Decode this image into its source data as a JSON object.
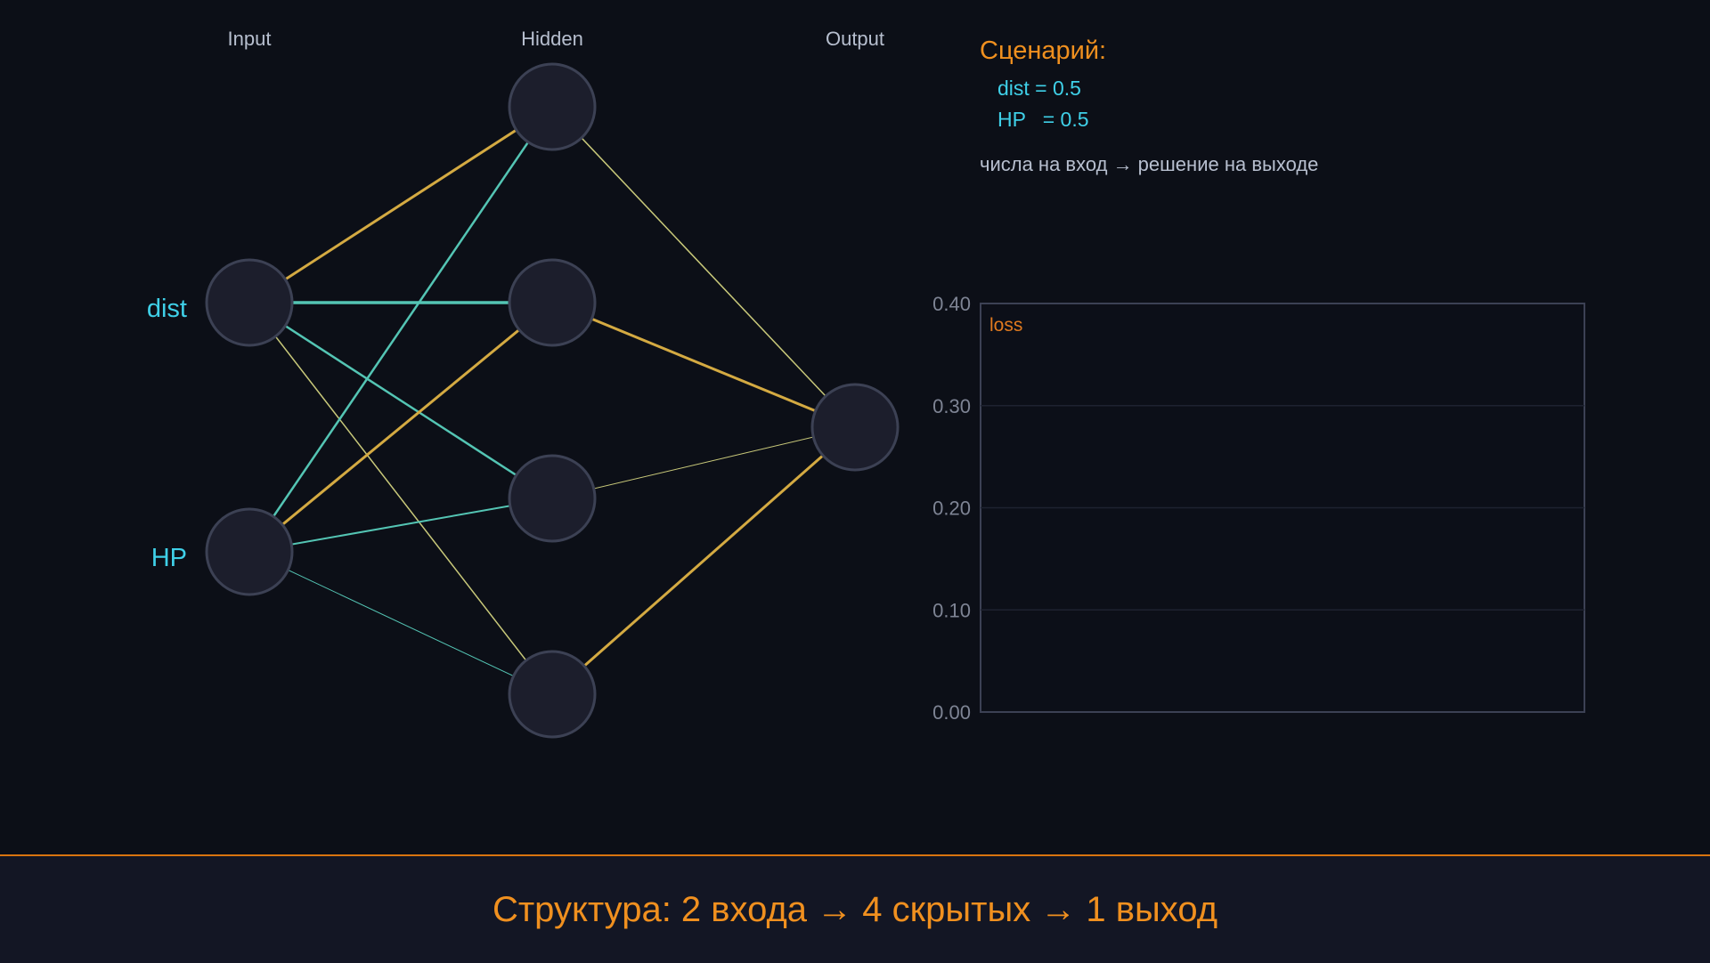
{
  "network": {
    "layer_labels": {
      "input": "Input",
      "hidden": "Hidden",
      "output": "Output"
    },
    "input_labels": [
      "dist",
      "HP"
    ],
    "layer_sizes": [
      2,
      4,
      1
    ],
    "edge_colors": {
      "positive": "#54c5b4",
      "negative": "#d4aa42",
      "weak": "#c9c97a"
    },
    "node_fill": "#1c1e2c",
    "node_stroke": "#3c4154"
  },
  "scenario": {
    "title": "Сценарий:",
    "lines": [
      "dist = 0.5",
      "HP   = 0.5"
    ],
    "note": "числа на вход → решение на выходе"
  },
  "chart_data": {
    "type": "line",
    "title": "",
    "series": [
      {
        "name": "loss",
        "values": []
      }
    ],
    "y_ticks": [
      "0.40",
      "0.30",
      "0.20",
      "0.10",
      "0.00"
    ],
    "ylim": [
      0,
      0.4
    ],
    "grid": true
  },
  "caption": "Структура: 2 входа → 4 скрытых → 1 выход",
  "colors": {
    "accent": "#f0901f",
    "cyan": "#3fd0e8",
    "label_gray": "#b7bfcf",
    "axis_gray": "#7e8494"
  }
}
